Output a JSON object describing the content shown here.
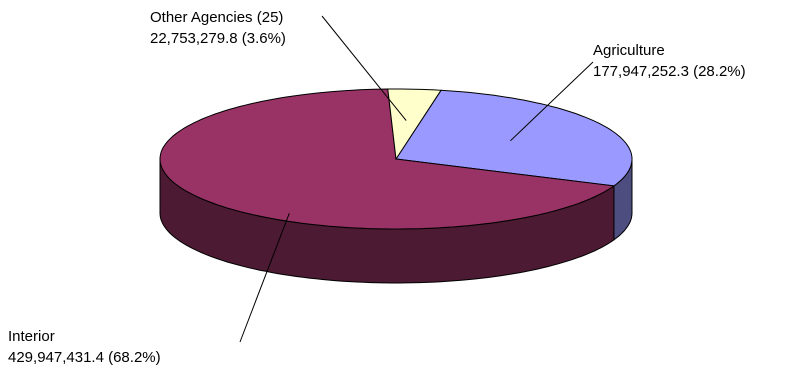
{
  "chart_data": {
    "type": "pie",
    "style": "3d",
    "title": "",
    "legend": "none",
    "categories": [
      "Agriculture",
      "Interior",
      "Other Agencies (25)"
    ],
    "values": [
      177947252.3,
      429947431.4,
      22753279.8
    ],
    "percents": [
      28.2,
      68.2,
      3.6
    ],
    "colors": [
      "#9999ff",
      "#993366",
      "#ffffcc"
    ],
    "side_colors": [
      "#4d4d80",
      "#4d1a33",
      "#80806a"
    ],
    "labels": [
      {
        "name": "Agriculture",
        "value": "177,947,252.3 (28.2%)"
      },
      {
        "name": "Interior",
        "value": "429,947,431.4 (68.2%)"
      },
      {
        "name": "Other Agencies (25)",
        "value": "22,753,279.8 (3.6%)"
      }
    ]
  }
}
